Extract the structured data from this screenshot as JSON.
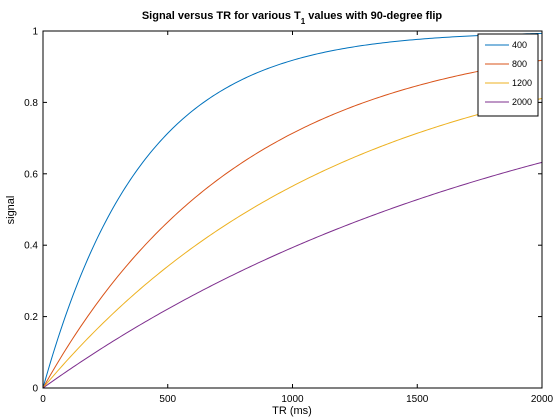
{
  "chart_data": {
    "type": "line",
    "title": {
      "main": "Signal versus TR for various T",
      "subscript": "1",
      "rest": " values with 90-degree flip"
    },
    "xlabel": "TR (ms)",
    "ylabel": "signal",
    "xlim": [
      0,
      2000
    ],
    "ylim": [
      0,
      1
    ],
    "xticks": [
      0,
      500,
      1000,
      1500,
      2000
    ],
    "yticks": [
      0,
      0.2,
      0.4,
      0.6,
      0.8,
      1
    ],
    "grid": false,
    "legend_position": "top-right",
    "function": "1 - exp(-TR/T1)",
    "x": [
      0,
      100,
      200,
      300,
      400,
      500,
      600,
      700,
      800,
      900,
      1000,
      1100,
      1200,
      1300,
      1400,
      1500,
      1600,
      1700,
      1800,
      1900,
      2000
    ],
    "series": [
      {
        "name": "400",
        "color": "#0072bd",
        "values": [
          0,
          0.221,
          0.393,
          0.528,
          0.632,
          0.713,
          0.777,
          0.826,
          0.865,
          0.895,
          0.918,
          0.936,
          0.95,
          0.961,
          0.97,
          0.977,
          0.982,
          0.986,
          0.989,
          0.991,
          0.993
        ]
      },
      {
        "name": "800",
        "color": "#d95319",
        "values": [
          0,
          0.118,
          0.221,
          0.313,
          0.393,
          0.465,
          0.528,
          0.583,
          0.632,
          0.675,
          0.713,
          0.747,
          0.777,
          0.803,
          0.826,
          0.847,
          0.865,
          0.881,
          0.895,
          0.907,
          0.918
        ]
      },
      {
        "name": "1200",
        "color": "#edb120",
        "values": [
          0,
          0.08,
          0.154,
          0.221,
          0.283,
          0.341,
          0.393,
          0.442,
          0.487,
          0.528,
          0.565,
          0.6,
          0.632,
          0.662,
          0.689,
          0.713,
          0.736,
          0.757,
          0.777,
          0.795,
          0.811
        ]
      },
      {
        "name": "2000",
        "color": "#7e2f8e",
        "values": [
          0,
          0.049,
          0.095,
          0.139,
          0.181,
          0.221,
          0.259,
          0.295,
          0.33,
          0.362,
          0.393,
          0.423,
          0.451,
          0.478,
          0.503,
          0.528,
          0.551,
          0.573,
          0.593,
          0.613,
          0.632
        ]
      }
    ]
  }
}
